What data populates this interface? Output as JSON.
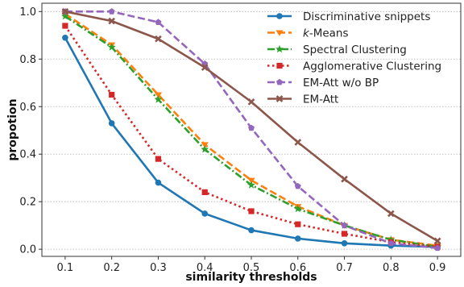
{
  "chart_data": {
    "type": "line",
    "xlabel": "similarity thresholds",
    "ylabel": "propotion",
    "x": [
      0.1,
      0.2,
      0.3,
      0.4,
      0.5,
      0.6,
      0.7,
      0.8,
      0.9
    ],
    "xticks": [
      "0.1",
      "0.2",
      "0.3",
      "0.4",
      "0.5",
      "0.6",
      "0.7",
      "0.8",
      "0.9"
    ],
    "yticks": [
      "0.0",
      "0.2",
      "0.4",
      "0.6",
      "0.8",
      "1.0"
    ],
    "xlim": [
      0.05,
      0.95
    ],
    "ylim": [
      -0.03,
      1.035
    ],
    "grid": "horizontal dotted",
    "legend_position": "top-right",
    "series": [
      {
        "name": "Discriminative snippets",
        "values": [
          0.89,
          0.53,
          0.28,
          0.15,
          0.08,
          0.045,
          0.025,
          0.015,
          0.01
        ],
        "color": "#1f77b4",
        "dash": "solid",
        "marker": "circle"
      },
      {
        "name_parts": [
          "k",
          "-Means"
        ],
        "values": [
          0.99,
          0.86,
          0.65,
          0.44,
          0.29,
          0.18,
          0.1,
          0.04,
          0.015
        ],
        "color": "#ff7f0e",
        "dash": "dashed",
        "marker": "triangle-down"
      },
      {
        "name": "Spectral Clustering",
        "values": [
          0.98,
          0.85,
          0.63,
          0.42,
          0.27,
          0.17,
          0.1,
          0.04,
          0.01
        ],
        "color": "#2ca02c",
        "dash": "dashdot",
        "marker": "star"
      },
      {
        "name": "Agglomerative Clustering",
        "values": [
          0.94,
          0.65,
          0.38,
          0.24,
          0.16,
          0.105,
          0.065,
          0.03,
          0.01
        ],
        "color": "#d62728",
        "dash": "dotted",
        "marker": "square"
      },
      {
        "name": "EM-Att w/o BP",
        "values": [
          1.0,
          1.0,
          0.955,
          0.78,
          0.51,
          0.265,
          0.1,
          0.025,
          0.005
        ],
        "color": "#9467bd",
        "dash": "dashed",
        "marker": "pentagon"
      },
      {
        "name": "EM-Att",
        "values": [
          1.0,
          0.96,
          0.885,
          0.765,
          0.62,
          0.45,
          0.295,
          0.15,
          0.035
        ],
        "color": "#8c564b",
        "dash": "solid",
        "marker": "x"
      }
    ]
  }
}
